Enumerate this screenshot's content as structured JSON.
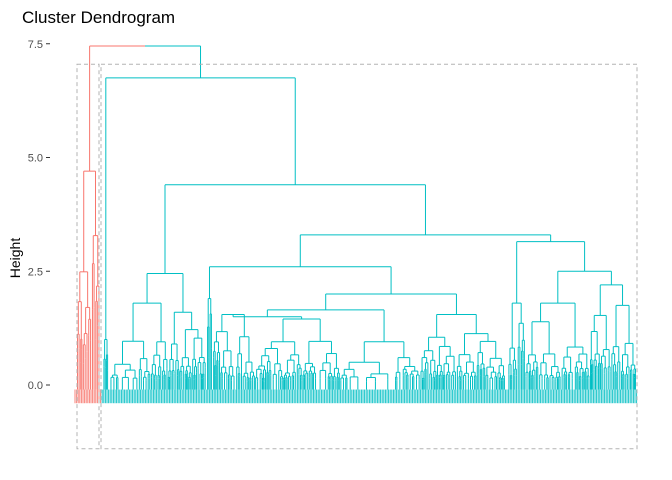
{
  "chart_data": {
    "type": "dendrogram",
    "title": "Cluster Dendrogram",
    "ylabel": "Height",
    "xlabel": "",
    "ylim": [
      -1.5,
      7.7
    ],
    "yticks": [
      0.0,
      2.5,
      5.0,
      7.5
    ],
    "ytick_labels": [
      "0.0",
      "2.5",
      "5.0",
      "7.5"
    ],
    "grid": false,
    "clusters": [
      {
        "id": 1,
        "color": "#F8766D",
        "merge_height": 7.45,
        "top_height": 4.7
      },
      {
        "id": 2,
        "color": "#00BFC4",
        "merge_height": 7.45,
        "top_height": 6.75
      }
    ],
    "root_height": 7.45,
    "major_merges": [
      {
        "height": 6.75,
        "cluster": 2
      },
      {
        "height": 4.4,
        "cluster": 2
      },
      {
        "height": 3.3,
        "cluster": 2
      },
      {
        "height": 2.6,
        "cluster": 2
      },
      {
        "height": 2.45,
        "cluster": 2
      },
      {
        "height": 2.0,
        "cluster": 2
      }
    ],
    "rect_boxes": [
      {
        "cluster": 1,
        "ymin": -1.4,
        "ymax": 7.05
      },
      {
        "cluster": 2,
        "ymin": -1.4,
        "ymax": 7.05
      }
    ]
  }
}
